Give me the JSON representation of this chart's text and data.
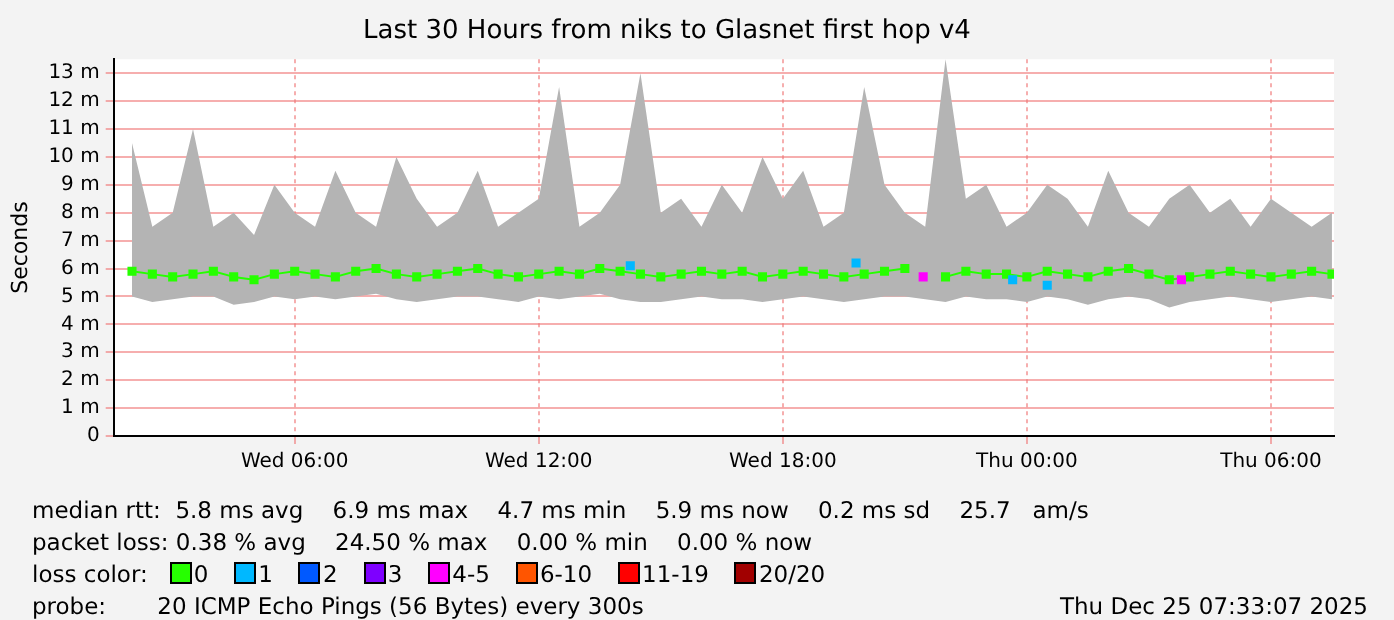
{
  "chart_data": {
    "type": "line",
    "title": "Last 30 Hours from niks to Glasnet first hop v4",
    "ylabel": "Seconds",
    "x": [
      "2025-12-24T02:00",
      "2025-12-24T02:30",
      "2025-12-24T03:00",
      "2025-12-24T03:30",
      "2025-12-24T04:00",
      "2025-12-24T04:30",
      "2025-12-24T05:00",
      "2025-12-24T05:30",
      "2025-12-24T06:00",
      "2025-12-24T06:30",
      "2025-12-24T07:00",
      "2025-12-24T07:30",
      "2025-12-24T08:00",
      "2025-12-24T08:30",
      "2025-12-24T09:00",
      "2025-12-24T09:30",
      "2025-12-24T10:00",
      "2025-12-24T10:30",
      "2025-12-24T11:00",
      "2025-12-24T11:30",
      "2025-12-24T12:00",
      "2025-12-24T12:30",
      "2025-12-24T13:00",
      "2025-12-24T13:30",
      "2025-12-24T14:00",
      "2025-12-24T14:30",
      "2025-12-24T15:00",
      "2025-12-24T15:30",
      "2025-12-24T16:00",
      "2025-12-24T16:30",
      "2025-12-24T17:00",
      "2025-12-24T17:30",
      "2025-12-24T18:00",
      "2025-12-24T18:30",
      "2025-12-24T19:00",
      "2025-12-24T19:30",
      "2025-12-24T20:00",
      "2025-12-24T20:30",
      "2025-12-24T21:00",
      "2025-12-24T21:30",
      "2025-12-24T22:00",
      "2025-12-24T22:30",
      "2025-12-24T23:00",
      "2025-12-24T23:30",
      "2025-12-25T00:00",
      "2025-12-25T00:30",
      "2025-12-25T01:00",
      "2025-12-25T01:30",
      "2025-12-25T02:00",
      "2025-12-25T02:30",
      "2025-12-25T03:00",
      "2025-12-25T03:30",
      "2025-12-25T04:00",
      "2025-12-25T04:30",
      "2025-12-25T05:00",
      "2025-12-25T05:30",
      "2025-12-25T06:00",
      "2025-12-25T06:30",
      "2025-12-25T07:00",
      "2025-12-25T07:30"
    ],
    "series": [
      {
        "name": "0",
        "color": "#26ff00",
        "values": [
          5.9,
          5.8,
          5.7,
          5.8,
          5.9,
          5.7,
          5.6,
          5.8,
          5.9,
          5.8,
          5.7,
          5.9,
          6.0,
          5.8,
          5.7,
          5.8,
          5.9,
          6.0,
          5.8,
          5.7,
          5.8,
          5.9,
          5.8,
          6.0,
          5.9,
          5.8,
          5.7,
          5.8,
          5.9,
          5.8,
          5.9,
          5.7,
          5.8,
          5.9,
          5.8,
          5.7,
          5.8,
          5.9,
          6.0,
          null,
          5.7,
          5.9,
          5.8,
          5.8,
          5.7,
          5.9,
          5.8,
          5.7,
          5.9,
          6.0,
          5.8,
          5.6,
          5.7,
          5.8,
          5.9,
          5.8,
          5.7,
          5.8,
          5.9,
          5.8
        ],
        "lower": [
          5.0,
          4.8,
          4.9,
          5.0,
          5.0,
          4.7,
          4.8,
          5.0,
          4.9,
          5.0,
          4.9,
          5.0,
          5.1,
          4.9,
          4.8,
          4.9,
          5.0,
          5.0,
          4.9,
          4.8,
          5.0,
          4.9,
          5.0,
          5.1,
          4.9,
          4.8,
          4.8,
          4.9,
          5.0,
          4.9,
          4.9,
          4.8,
          4.9,
          5.0,
          4.9,
          4.8,
          4.9,
          5.0,
          5.0,
          4.9,
          4.8,
          5.0,
          4.9,
          4.9,
          4.8,
          5.0,
          4.9,
          4.7,
          4.9,
          5.0,
          4.9,
          4.6,
          4.8,
          4.9,
          5.0,
          4.9,
          4.8,
          4.9,
          5.0,
          4.9
        ],
        "upper": [
          10.5,
          7.5,
          8.0,
          11.0,
          7.5,
          8.0,
          7.2,
          9.0,
          8.0,
          7.5,
          9.5,
          8.0,
          7.5,
          10.0,
          8.5,
          7.5,
          8.0,
          9.5,
          7.5,
          8.0,
          8.5,
          12.5,
          7.5,
          8.0,
          9.0,
          13.0,
          8.0,
          8.5,
          7.5,
          9.0,
          8.0,
          10.0,
          8.5,
          9.5,
          7.5,
          8.0,
          12.5,
          9.0,
          8.0,
          7.5,
          13.5,
          8.5,
          9.0,
          7.5,
          8.0,
          9.0,
          8.5,
          7.5,
          9.5,
          8.0,
          7.5,
          8.5,
          9.0,
          8.0,
          8.5,
          7.5,
          8.5,
          8.0,
          7.5,
          8.0
        ]
      },
      {
        "type": "scatter",
        "name": "1",
        "color": "#00b8ff",
        "x": [
          "2025-12-24T14:15",
          "2025-12-24T19:48",
          "2025-12-24T23:39",
          "2025-12-25T00:30"
        ],
        "values": [
          6.1,
          6.2,
          5.6,
          5.4
        ]
      },
      {
        "type": "scatter",
        "name": "2",
        "color": "#0059ff",
        "values": [
          null,
          null,
          null,
          null,
          null,
          null,
          null,
          null,
          null,
          null,
          null,
          null,
          null,
          null,
          null,
          null,
          null,
          null,
          null,
          null,
          null,
          null,
          null,
          null,
          null,
          null,
          null,
          null,
          null,
          null,
          null,
          null,
          null,
          null,
          null,
          null,
          null,
          null,
          null,
          null,
          null,
          null,
          null,
          null,
          null,
          null,
          null,
          null,
          null,
          null,
          null,
          null,
          null,
          null,
          null,
          null,
          null,
          null,
          null,
          null
        ]
      },
      {
        "type": "scatter",
        "name": "3",
        "color": "#7e00ff",
        "values": [
          null,
          null,
          null,
          null,
          null,
          null,
          null,
          null,
          null,
          null,
          null,
          null,
          null,
          null,
          null,
          null,
          null,
          null,
          null,
          null,
          null,
          null,
          null,
          null,
          null,
          null,
          null,
          null,
          null,
          null,
          null,
          null,
          null,
          null,
          null,
          null,
          null,
          null,
          null,
          null,
          null,
          null,
          null,
          null,
          null,
          null,
          null,
          null,
          null,
          null,
          null,
          null,
          null,
          null,
          null,
          null,
          null,
          null,
          null,
          null
        ]
      },
      {
        "type": "scatter",
        "name": "4-5",
        "color": "#ff00ff",
        "x": [
          "2025-12-24T21:27",
          "2025-12-25T03:48"
        ],
        "values": [
          5.7,
          5.6
        ]
      },
      {
        "type": "scatter",
        "name": "6-10",
        "color": "#ff5500",
        "values": [
          null,
          null,
          null,
          null,
          null,
          null,
          null,
          null,
          null,
          null,
          null,
          null,
          null,
          null,
          null,
          null,
          null,
          null,
          null,
          null,
          null,
          null,
          null,
          null,
          null,
          null,
          null,
          null,
          null,
          null,
          null,
          null,
          null,
          null,
          null,
          null,
          null,
          null,
          null,
          null,
          null,
          null,
          null,
          null,
          null,
          null,
          null,
          null,
          null,
          null,
          null,
          null,
          null,
          null,
          null,
          null,
          null,
          null,
          null,
          null
        ]
      },
      {
        "type": "scatter",
        "name": "11-19",
        "color": "#ff0000",
        "values": [
          null,
          null,
          null,
          null,
          null,
          null,
          null,
          null,
          null,
          null,
          null,
          null,
          null,
          null,
          null,
          null,
          null,
          null,
          null,
          null,
          null,
          null,
          null,
          null,
          null,
          null,
          null,
          null,
          null,
          null,
          null,
          null,
          null,
          null,
          null,
          null,
          null,
          null,
          null,
          null,
          null,
          null,
          null,
          null,
          null,
          null,
          null,
          null,
          null,
          null,
          null,
          null,
          null,
          null,
          null,
          null,
          null,
          null,
          null,
          null
        ]
      },
      {
        "type": "scatter",
        "name": "20/20",
        "color": "#a10000",
        "values": [
          null,
          null,
          null,
          null,
          null,
          null,
          null,
          null,
          null,
          null,
          null,
          null,
          null,
          null,
          null,
          null,
          null,
          null,
          null,
          null,
          null,
          null,
          null,
          null,
          null,
          null,
          null,
          null,
          null,
          null,
          null,
          null,
          null,
          null,
          null,
          null,
          null,
          null,
          null,
          null,
          null,
          null,
          null,
          null,
          null,
          null,
          null,
          null,
          null,
          null,
          null,
          null,
          null,
          null,
          null,
          null,
          null,
          null,
          null,
          null
        ]
      }
    ],
    "marker": "square",
    "xlim": [
      "2025-12-24T01:33",
      "2025-12-25T07:33"
    ],
    "xticks": [
      {
        "value": "2025-12-24T06:00",
        "label": "Wed 06:00"
      },
      {
        "value": "2025-12-24T12:00",
        "label": "Wed 12:00"
      },
      {
        "value": "2025-12-24T18:00",
        "label": "Wed 18:00"
      },
      {
        "value": "2025-12-25T00:00",
        "label": "Thu 00:00"
      },
      {
        "value": "2025-12-25T06:00",
        "label": "Thu 06:00"
      }
    ],
    "ylim": [
      0,
      13.5
    ],
    "yticks": [
      0,
      {
        "value": 1,
        "label": "1 m"
      },
      {
        "value": 2,
        "label": "2 m"
      },
      {
        "value": 3,
        "label": "3 m"
      },
      {
        "value": 4,
        "label": "4 m"
      },
      {
        "value": 5,
        "label": "5 m"
      },
      {
        "value": 6,
        "label": "6 m"
      },
      {
        "value": 7,
        "label": "7 m"
      },
      {
        "value": 8,
        "label": "8 m"
      },
      {
        "value": 9,
        "label": "9 m"
      },
      {
        "value": 10,
        "label": "10 m"
      },
      {
        "value": 11,
        "label": "11 m"
      },
      {
        "value": 12,
        "label": "12 m"
      },
      {
        "value": 13,
        "label": "13 m"
      }
    ],
    "grid": true,
    "legend": "bottom",
    "legend_title": "loss color:",
    "annotations": [
      "median rtt:  5.8 ms avg    6.9 ms max    4.7 ms min    5.9 ms now    0.2 ms sd    25.7   am/s",
      "packet loss: 0.38 % avg    24.50 % max    0.00 % min    0.00 % now",
      "probe:       20 ICMP Echo Pings (56 Bytes) every 300s",
      "Thu Dec 25 07:33:07 2025"
    ]
  }
}
